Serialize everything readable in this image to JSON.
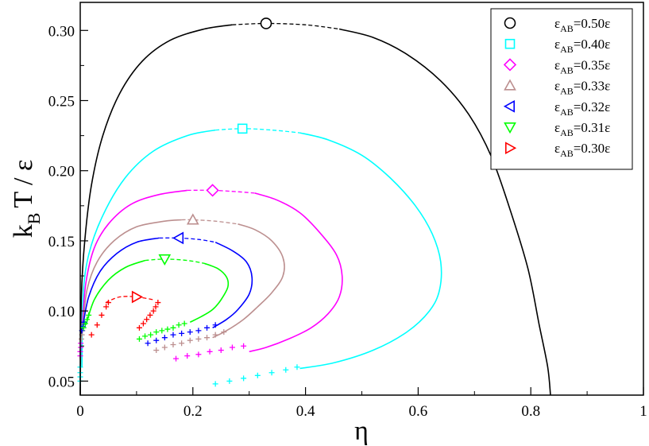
{
  "chart_data": {
    "type": "line",
    "xlabel": "η",
    "ylabel": {
      "k": "k",
      "sub": "B",
      "rest": "T / ε"
    },
    "xlim": [
      0,
      1
    ],
    "ylim": [
      0.04,
      0.32
    ],
    "x_ticks": [
      0,
      0.2,
      0.4,
      0.6,
      0.8,
      1
    ],
    "x_tick_labels": [
      "0",
      "0.2",
      "0.4",
      "0.6",
      "0.8",
      "1"
    ],
    "y_ticks": [
      0.05,
      0.1,
      0.15,
      0.2,
      0.25,
      0.3
    ],
    "y_tick_labels": [
      "0.05",
      "0.10",
      "0.15",
      "0.20",
      "0.25",
      "0.30"
    ],
    "grid": false,
    "legend_position": "top-right",
    "series": [
      {
        "name": "εAB=0.50ε",
        "legend": {
          "main": "ε",
          "sub": "AB",
          "rest": "=0.50ε"
        },
        "color": "#000000",
        "marker": "circle",
        "critical": [
          0.33,
          0.305
        ],
        "left": [
          [
            0.0,
            0.04
          ],
          [
            0.002,
            0.11
          ],
          [
            0.008,
            0.15
          ],
          [
            0.02,
            0.19
          ],
          [
            0.04,
            0.225
          ],
          [
            0.07,
            0.255
          ],
          [
            0.11,
            0.278
          ],
          [
            0.16,
            0.293
          ],
          [
            0.22,
            0.301
          ],
          [
            0.27,
            0.304
          ]
        ],
        "top_dashed": [
          [
            0.27,
            0.304
          ],
          [
            0.33,
            0.305
          ],
          [
            0.4,
            0.304
          ],
          [
            0.46,
            0.301
          ]
        ],
        "right": [
          [
            0.46,
            0.301
          ],
          [
            0.52,
            0.295
          ],
          [
            0.58,
            0.283
          ],
          [
            0.64,
            0.264
          ],
          [
            0.69,
            0.24
          ],
          [
            0.73,
            0.21
          ],
          [
            0.765,
            0.17
          ],
          [
            0.795,
            0.13
          ],
          [
            0.815,
            0.09
          ],
          [
            0.83,
            0.06
          ],
          [
            0.835,
            0.04
          ]
        ],
        "sim_points": []
      },
      {
        "name": "εAB=0.40ε",
        "legend": {
          "main": "ε",
          "sub": "AB",
          "rest": "=0.40ε"
        },
        "color": "#00ffff",
        "marker": "square",
        "critical": [
          0.288,
          0.23
        ],
        "left": [
          [
            0.003,
            0.06
          ],
          [
            0.005,
            0.11
          ],
          [
            0.015,
            0.14
          ],
          [
            0.04,
            0.168
          ],
          [
            0.08,
            0.195
          ],
          [
            0.13,
            0.214
          ],
          [
            0.19,
            0.225
          ],
          [
            0.24,
            0.229
          ]
        ],
        "top_dashed": [
          [
            0.24,
            0.229
          ],
          [
            0.288,
            0.23
          ],
          [
            0.34,
            0.229
          ],
          [
            0.39,
            0.227
          ]
        ],
        "right": [
          [
            0.39,
            0.227
          ],
          [
            0.44,
            0.222
          ],
          [
            0.5,
            0.211
          ],
          [
            0.55,
            0.195
          ],
          [
            0.595,
            0.175
          ],
          [
            0.625,
            0.155
          ],
          [
            0.64,
            0.135
          ],
          [
            0.638,
            0.115
          ],
          [
            0.62,
            0.1
          ],
          [
            0.58,
            0.085
          ],
          [
            0.52,
            0.072
          ],
          [
            0.45,
            0.063
          ],
          [
            0.39,
            0.059
          ]
        ],
        "sim_points": [
          [
            0.24,
            0.048
          ],
          [
            0.265,
            0.05
          ],
          [
            0.29,
            0.052
          ],
          [
            0.315,
            0.054
          ],
          [
            0.34,
            0.056
          ],
          [
            0.365,
            0.058
          ],
          [
            0.385,
            0.06
          ]
        ]
      },
      {
        "name": "εAB=0.35ε",
        "legend": {
          "main": "ε",
          "sub": "AB",
          "rest": "=0.35ε"
        },
        "color": "#ff00ff",
        "marker": "diamond",
        "critical": [
          0.235,
          0.186
        ],
        "left": [
          [
            0.004,
            0.09
          ],
          [
            0.01,
            0.12
          ],
          [
            0.025,
            0.145
          ],
          [
            0.05,
            0.162
          ],
          [
            0.09,
            0.176
          ],
          [
            0.14,
            0.183
          ],
          [
            0.19,
            0.186
          ]
        ],
        "top_dashed": [
          [
            0.19,
            0.186
          ],
          [
            0.235,
            0.186
          ],
          [
            0.28,
            0.185
          ],
          [
            0.31,
            0.184
          ]
        ],
        "right": [
          [
            0.31,
            0.184
          ],
          [
            0.35,
            0.179
          ],
          [
            0.39,
            0.17
          ],
          [
            0.425,
            0.156
          ],
          [
            0.455,
            0.14
          ],
          [
            0.465,
            0.125
          ],
          [
            0.46,
            0.11
          ],
          [
            0.44,
            0.098
          ],
          [
            0.41,
            0.088
          ],
          [
            0.37,
            0.08
          ],
          [
            0.33,
            0.074
          ],
          [
            0.3,
            0.071
          ]
        ],
        "sim_points": [
          [
            0.17,
            0.066
          ],
          [
            0.19,
            0.068
          ],
          [
            0.21,
            0.069
          ],
          [
            0.23,
            0.071
          ],
          [
            0.25,
            0.072
          ],
          [
            0.27,
            0.074
          ],
          [
            0.29,
            0.075
          ]
        ]
      },
      {
        "name": "εAB=0.33ε",
        "legend": {
          "main": "ε",
          "sub": "AB",
          "rest": "=0.33ε"
        },
        "color": "#bc8f8f",
        "marker": "triangle-up",
        "critical": [
          0.2,
          0.165
        ],
        "left": [
          [
            0.005,
            0.09
          ],
          [
            0.012,
            0.115
          ],
          [
            0.03,
            0.135
          ],
          [
            0.06,
            0.15
          ],
          [
            0.1,
            0.16
          ],
          [
            0.15,
            0.164
          ],
          [
            0.18,
            0.165
          ]
        ],
        "top_dashed": [
          [
            0.18,
            0.165
          ],
          [
            0.2,
            0.165
          ],
          [
            0.24,
            0.164
          ],
          [
            0.28,
            0.162
          ]
        ],
        "right": [
          [
            0.28,
            0.162
          ],
          [
            0.31,
            0.158
          ],
          [
            0.34,
            0.15
          ],
          [
            0.36,
            0.138
          ],
          [
            0.36,
            0.125
          ],
          [
            0.34,
            0.113
          ],
          [
            0.315,
            0.103
          ],
          [
            0.29,
            0.094
          ],
          [
            0.26,
            0.086
          ],
          [
            0.235,
            0.081
          ]
        ],
        "sim_points": [
          [
            0.135,
            0.072
          ],
          [
            0.15,
            0.074
          ],
          [
            0.165,
            0.076
          ],
          [
            0.18,
            0.077
          ],
          [
            0.195,
            0.079
          ],
          [
            0.21,
            0.08
          ],
          [
            0.225,
            0.081
          ],
          [
            0.24,
            0.083
          ],
          [
            0.255,
            0.085
          ]
        ]
      },
      {
        "name": "εAB=0.32ε",
        "legend": {
          "main": "ε",
          "sub": "AB",
          "rest": "=0.32ε"
        },
        "color": "#0000ff",
        "marker": "triangle-left",
        "critical": [
          0.175,
          0.152
        ],
        "left": [
          [
            0.005,
            0.09
          ],
          [
            0.015,
            0.11
          ],
          [
            0.035,
            0.128
          ],
          [
            0.065,
            0.141
          ],
          [
            0.1,
            0.149
          ],
          [
            0.14,
            0.152
          ]
        ],
        "top_dashed": [
          [
            0.14,
            0.152
          ],
          [
            0.175,
            0.152
          ],
          [
            0.21,
            0.151
          ],
          [
            0.24,
            0.149
          ]
        ],
        "right": [
          [
            0.24,
            0.149
          ],
          [
            0.27,
            0.143
          ],
          [
            0.295,
            0.135
          ],
          [
            0.305,
            0.124
          ],
          [
            0.3,
            0.112
          ],
          [
            0.28,
            0.101
          ],
          [
            0.26,
            0.094
          ],
          [
            0.235,
            0.088
          ]
        ],
        "sim_points": [
          [
            0.12,
            0.077
          ],
          [
            0.135,
            0.079
          ],
          [
            0.15,
            0.081
          ],
          [
            0.165,
            0.083
          ],
          [
            0.18,
            0.084
          ],
          [
            0.195,
            0.085
          ],
          [
            0.21,
            0.086
          ],
          [
            0.225,
            0.088
          ],
          [
            0.24,
            0.09
          ]
        ]
      },
      {
        "name": "εAB=0.31ε",
        "legend": {
          "main": "ε",
          "sub": "AB",
          "rest": "=0.31ε"
        },
        "color": "#00ff00",
        "marker": "triangle-down",
        "critical": [
          0.15,
          0.137
        ],
        "left": [
          [
            0.01,
            0.09
          ],
          [
            0.025,
            0.108
          ],
          [
            0.05,
            0.122
          ],
          [
            0.08,
            0.131
          ],
          [
            0.115,
            0.136
          ]
        ],
        "top_dashed": [
          [
            0.115,
            0.136
          ],
          [
            0.15,
            0.137
          ],
          [
            0.19,
            0.136
          ],
          [
            0.22,
            0.134
          ]
        ],
        "right": [
          [
            0.22,
            0.134
          ],
          [
            0.245,
            0.13
          ],
          [
            0.26,
            0.124
          ],
          [
            0.262,
            0.117
          ],
          [
            0.25,
            0.108
          ],
          [
            0.235,
            0.101
          ],
          [
            0.215,
            0.096
          ],
          [
            0.195,
            0.092
          ]
        ],
        "sim_points": [
          [
            0.105,
            0.08
          ],
          [
            0.115,
            0.082
          ],
          [
            0.125,
            0.083
          ],
          [
            0.135,
            0.085
          ],
          [
            0.145,
            0.086
          ],
          [
            0.155,
            0.087
          ],
          [
            0.165,
            0.088
          ],
          [
            0.175,
            0.09
          ],
          [
            0.185,
            0.091
          ]
        ]
      },
      {
        "name": "εAB=0.30ε",
        "legend": {
          "main": "ε",
          "sub": "AB",
          "rest": "=0.30ε"
        },
        "color": "#ff0000",
        "marker": "triangle-right",
        "critical": [
          0.1,
          0.11
        ],
        "left": [],
        "top_dashed": [
          [
            0.045,
            0.106
          ],
          [
            0.07,
            0.11
          ],
          [
            0.1,
            0.11
          ],
          [
            0.13,
            0.108
          ]
        ],
        "right": [],
        "sim_points": [
          [
            0.02,
            0.083
          ],
          [
            0.03,
            0.09
          ],
          [
            0.038,
            0.097
          ],
          [
            0.046,
            0.103
          ],
          [
            0.05,
            0.106
          ],
          [
            0.105,
            0.088
          ],
          [
            0.112,
            0.091
          ],
          [
            0.118,
            0.094
          ],
          [
            0.124,
            0.097
          ],
          [
            0.13,
            0.1
          ],
          [
            0.134,
            0.103
          ],
          [
            0.138,
            0.106
          ]
        ]
      }
    ],
    "low_eta_markers": [
      {
        "color": "#00ffff",
        "points": [
          [
            0.0,
            0.05
          ],
          [
            0.0,
            0.053
          ],
          [
            0.0,
            0.056
          ],
          [
            0.0,
            0.06
          ]
        ]
      },
      {
        "color": "#ff00ff",
        "points": [
          [
            0.0,
            0.068
          ],
          [
            0.0,
            0.071
          ],
          [
            0.001,
            0.074
          ],
          [
            0.001,
            0.077
          ]
        ]
      },
      {
        "color": "#bc8f8f",
        "points": [
          [
            0.002,
            0.08
          ],
          [
            0.003,
            0.083
          ],
          [
            0.004,
            0.086
          ]
        ]
      },
      {
        "color": "#0000ff",
        "points": [
          [
            0.003,
            0.086
          ],
          [
            0.005,
            0.089
          ],
          [
            0.007,
            0.092
          ]
        ]
      },
      {
        "color": "#00ff00",
        "points": [
          [
            0.006,
            0.088
          ],
          [
            0.009,
            0.091
          ],
          [
            0.012,
            0.094
          ],
          [
            0.015,
            0.097
          ]
        ]
      }
    ]
  }
}
